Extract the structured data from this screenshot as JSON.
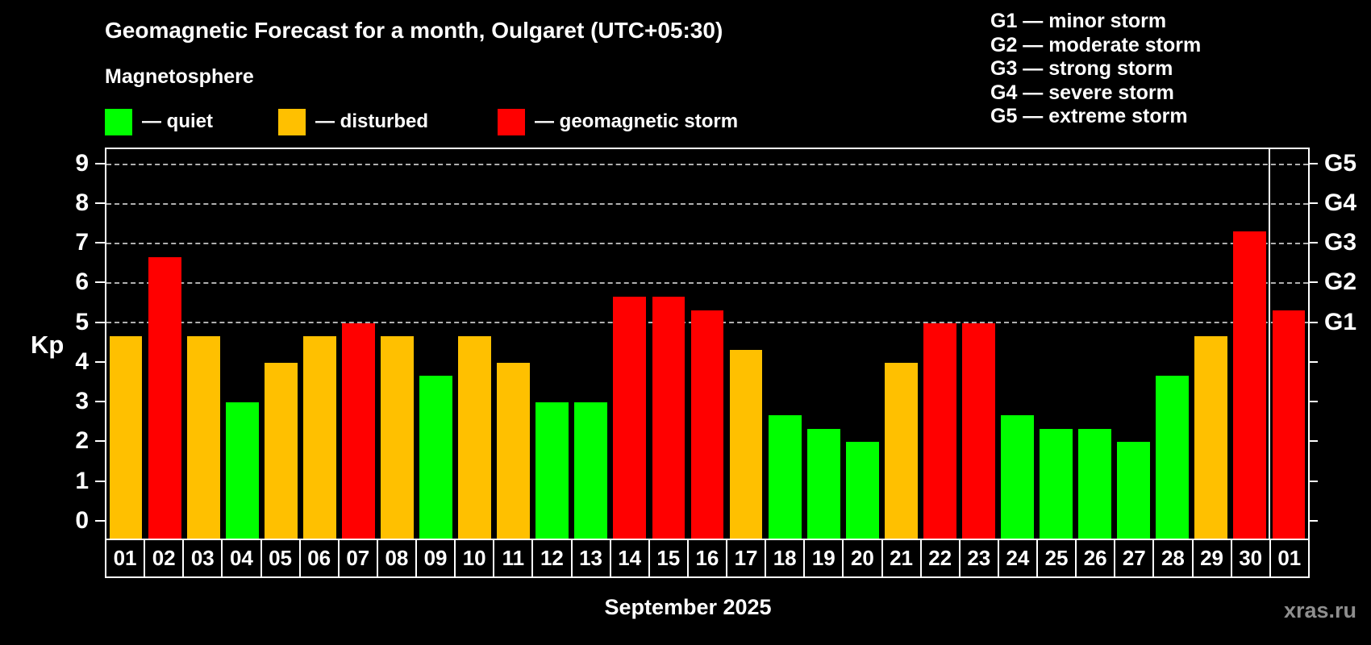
{
  "header": {
    "title": "Geomagnetic Forecast for a month, Oulgaret (UTC+05:30)",
    "subtitle": "Magnetosphere"
  },
  "legend": {
    "items": [
      {
        "key": "quiet",
        "label": "— quiet"
      },
      {
        "key": "disturbed",
        "label": "— disturbed"
      },
      {
        "key": "storm",
        "label": "— geomagnetic storm"
      }
    ]
  },
  "g_scale_legend": {
    "lines": [
      "G1 — minor storm",
      "G2 — moderate storm",
      "G3 — strong storm",
      "G4 — severe storm",
      "G5 — extreme storm"
    ]
  },
  "footer": {
    "month_label": "September 2025",
    "watermark": "xras.ru"
  },
  "colors": {
    "quiet": "#00ff00",
    "disturbed": "#ffc000",
    "storm": "#ff0000",
    "background": "#000000",
    "grid": "#b0b0b0",
    "axis": "#ffffff",
    "watermark": "#8e8e8e"
  },
  "chart_data": {
    "type": "bar",
    "title": "Geomagnetic Forecast for a month, Oulgaret (UTC+05:30)",
    "xlabel": "September 2025",
    "ylabel": "Kp",
    "categories": [
      "01",
      "02",
      "03",
      "04",
      "05",
      "06",
      "07",
      "08",
      "09",
      "10",
      "11",
      "12",
      "13",
      "14",
      "15",
      "16",
      "17",
      "18",
      "19",
      "20",
      "21",
      "22",
      "23",
      "24",
      "25",
      "26",
      "27",
      "28",
      "29",
      "30",
      "01"
    ],
    "values": [
      4.67,
      6.67,
      4.67,
      3.0,
      4.0,
      4.67,
      5.0,
      4.67,
      3.67,
      4.67,
      4.0,
      3.0,
      3.0,
      5.67,
      5.67,
      5.33,
      4.33,
      2.67,
      2.33,
      2.0,
      4.0,
      5.0,
      5.0,
      2.67,
      2.33,
      2.33,
      2.0,
      3.67,
      4.67,
      7.33,
      5.33
    ],
    "statuses": [
      "disturbed",
      "storm",
      "disturbed",
      "quiet",
      "disturbed",
      "disturbed",
      "storm",
      "disturbed",
      "quiet",
      "disturbed",
      "disturbed",
      "quiet",
      "quiet",
      "storm",
      "storm",
      "storm",
      "disturbed",
      "quiet",
      "quiet",
      "quiet",
      "disturbed",
      "storm",
      "storm",
      "quiet",
      "quiet",
      "quiet",
      "quiet",
      "quiet",
      "disturbed",
      "storm",
      "storm"
    ],
    "month_separator_before_index": 30,
    "ylim": [
      0,
      9
    ],
    "axis_range": [
      -0.45,
      9.4
    ],
    "yticks": [
      0,
      1,
      2,
      3,
      4,
      5,
      6,
      7,
      8,
      9
    ],
    "grid_levels": [
      5,
      6,
      7,
      8,
      9
    ],
    "right_axis_labels": [
      {
        "level": 5,
        "label": "G1"
      },
      {
        "level": 6,
        "label": "G2"
      },
      {
        "level": 7,
        "label": "G3"
      },
      {
        "level": 8,
        "label": "G4"
      },
      {
        "level": 9,
        "label": "G5"
      }
    ],
    "grid": "dashed-horizontal",
    "legend_position": "top-left"
  }
}
